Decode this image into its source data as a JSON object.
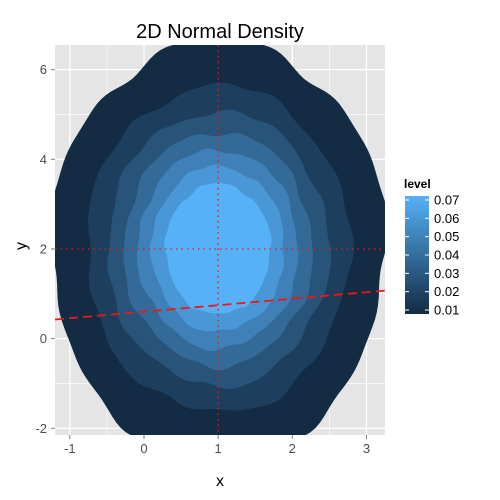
{
  "chart_data": {
    "type": "contour",
    "title": "2D Normal Density",
    "xlabel": "x",
    "ylabel": "y",
    "xlim": [
      -1.2,
      3.25
    ],
    "ylim": [
      -2.15,
      6.55
    ],
    "x_ticks": [
      -1,
      0,
      1,
      2,
      3
    ],
    "y_ticks": [
      -2,
      0,
      2,
      4,
      6
    ],
    "grid": true,
    "panel_background": "#e5e5e5",
    "grid_color": "#ffffff",
    "distribution": {
      "mean_x": 1.0,
      "mean_y": 2.0,
      "sd_x": 0.95,
      "sd_y": 1.95
    },
    "levels": [
      0.01,
      0.02,
      0.03,
      0.04,
      0.05,
      0.06,
      0.07
    ],
    "level_colors": [
      "#132b43",
      "#1d3f5d",
      "#28547a",
      "#336a98",
      "#3e80b7",
      "#4a97d7",
      "#56b1f7"
    ],
    "reference_lines": [
      {
        "kind": "vertical",
        "x": 1,
        "color": "#e41a1c",
        "style": "dotted"
      },
      {
        "kind": "horizontal",
        "y": 2,
        "color": "#e41a1c",
        "style": "dotted"
      },
      {
        "kind": "abline",
        "intercept": 0.6,
        "slope": 0.145,
        "color": "#e41a1c",
        "style": "dashed"
      }
    ],
    "legend": {
      "title": "level",
      "position": "right",
      "labels": [
        "0.07",
        "0.06",
        "0.05",
        "0.04",
        "0.03",
        "0.02",
        "0.01"
      ]
    }
  }
}
